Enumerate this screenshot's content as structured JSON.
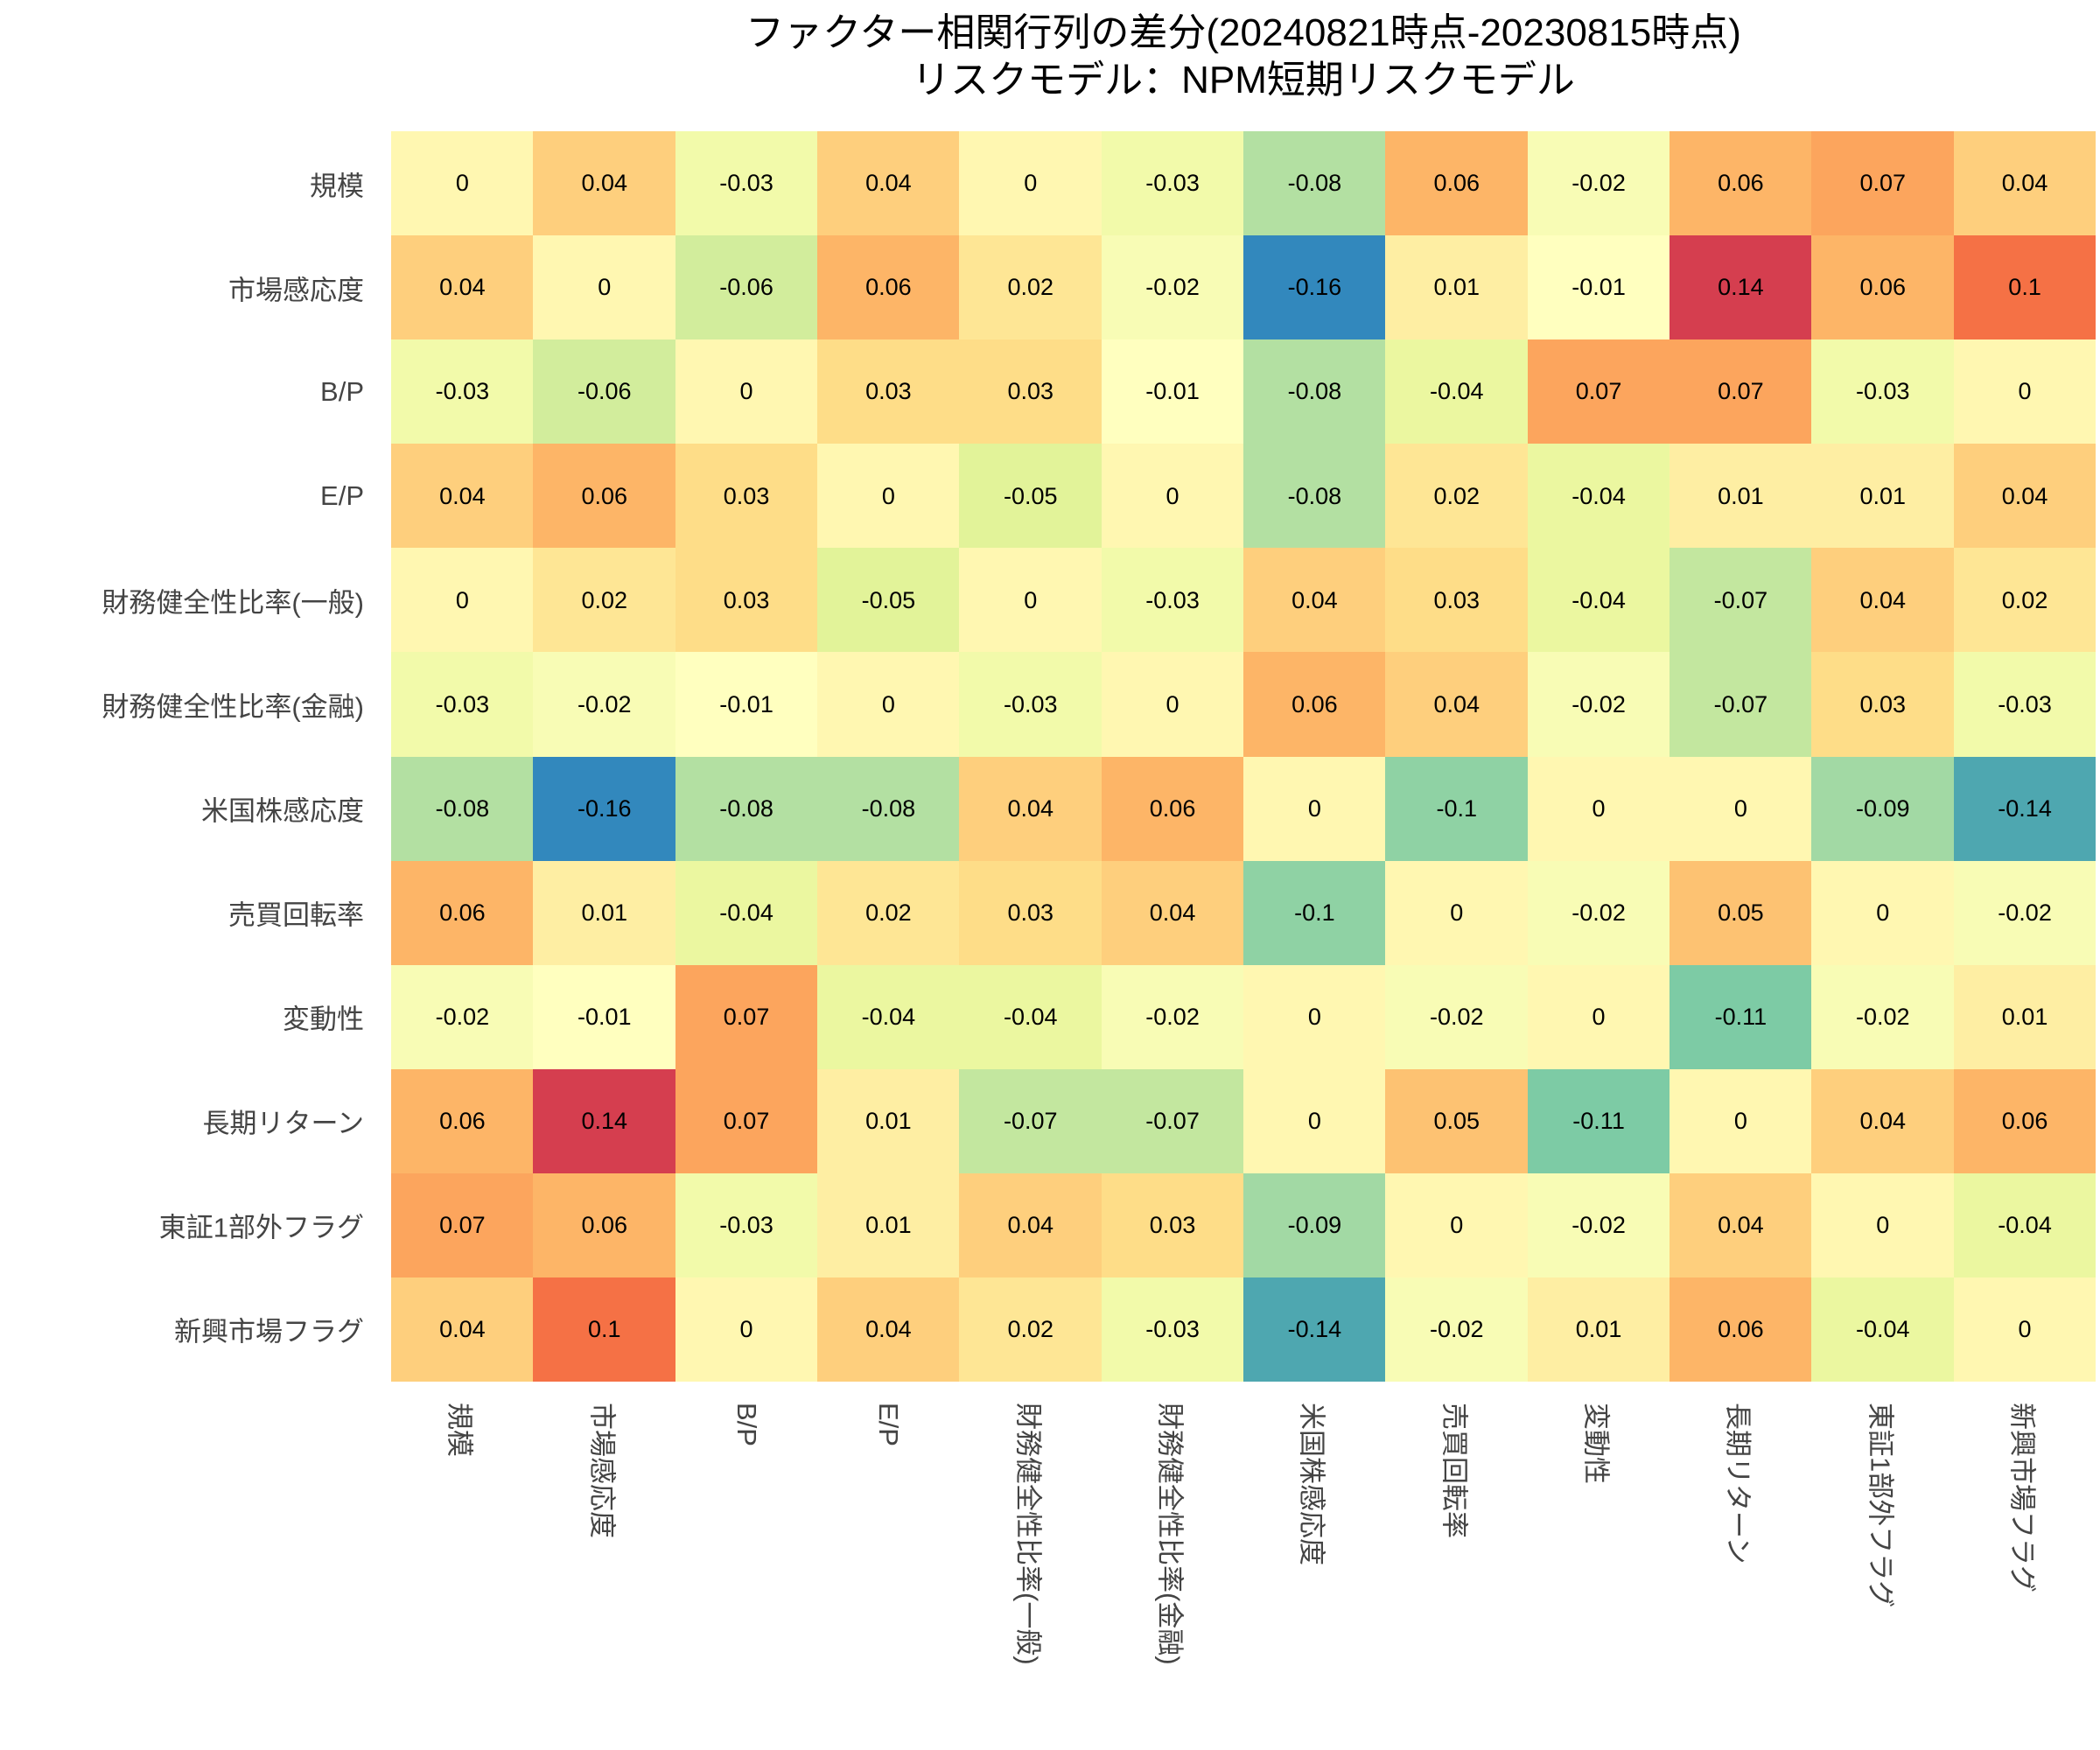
{
  "chart_data": {
    "type": "heatmap",
    "title": "ファクター相関行列の差分(20240821時点-20230815時点)",
    "subtitle": "リスクモデル：NPM短期リスクモデル",
    "xlabel": "",
    "ylabel": "",
    "colormap": [
      "#3288bd",
      "#66c2a5",
      "#abdda4",
      "#e6f598",
      "#ffffbf",
      "#fee08b",
      "#fdae61",
      "#f46d43",
      "#d53e4f"
    ],
    "color_range": [
      -0.16,
      0.14
    ],
    "labels": [
      "規模",
      "市場感応度",
      "B/P",
      "E/P",
      "財務健全性比率(一般)",
      "財務健全性比率(金融)",
      "米国株感応度",
      "売買回転率",
      "変動性",
      "長期リターン",
      "東証1部外フラグ",
      "新興市場フラグ"
    ],
    "values": [
      [
        0,
        0.04,
        -0.03,
        0.04,
        0,
        -0.03,
        -0.08,
        0.06,
        -0.02,
        0.06,
        0.07,
        0.04
      ],
      [
        0.04,
        0,
        -0.06,
        0.06,
        0.02,
        -0.02,
        -0.16,
        0.01,
        -0.01,
        0.14,
        0.06,
        0.1
      ],
      [
        -0.03,
        -0.06,
        0,
        0.03,
        0.03,
        -0.01,
        -0.08,
        -0.04,
        0.07,
        0.07,
        -0.03,
        0
      ],
      [
        0.04,
        0.06,
        0.03,
        0,
        -0.05,
        0,
        -0.08,
        0.02,
        -0.04,
        0.01,
        0.01,
        0.04
      ],
      [
        0,
        0.02,
        0.03,
        -0.05,
        0,
        -0.03,
        0.04,
        0.03,
        -0.04,
        -0.07,
        0.04,
        0.02
      ],
      [
        -0.03,
        -0.02,
        -0.01,
        0,
        -0.03,
        0,
        0.06,
        0.04,
        -0.02,
        -0.07,
        0.03,
        -0.03
      ],
      [
        -0.08,
        -0.16,
        -0.08,
        -0.08,
        0.04,
        0.06,
        0,
        -0.1,
        0,
        0,
        -0.09,
        -0.14
      ],
      [
        0.06,
        0.01,
        -0.04,
        0.02,
        0.03,
        0.04,
        -0.1,
        0,
        -0.02,
        0.05,
        0,
        -0.02
      ],
      [
        -0.02,
        -0.01,
        0.07,
        -0.04,
        -0.04,
        -0.02,
        0,
        -0.02,
        0,
        -0.11,
        -0.02,
        0.01
      ],
      [
        0.06,
        0.14,
        0.07,
        0.01,
        -0.07,
        -0.07,
        0,
        0.05,
        -0.11,
        0,
        0.04,
        0.06
      ],
      [
        0.07,
        0.06,
        -0.03,
        0.01,
        0.04,
        0.03,
        -0.09,
        0,
        -0.02,
        0.04,
        0,
        -0.04
      ],
      [
        0.04,
        0.1,
        0,
        0.04,
        0.02,
        -0.03,
        -0.14,
        -0.02,
        0.01,
        0.06,
        -0.04,
        0
      ]
    ]
  }
}
